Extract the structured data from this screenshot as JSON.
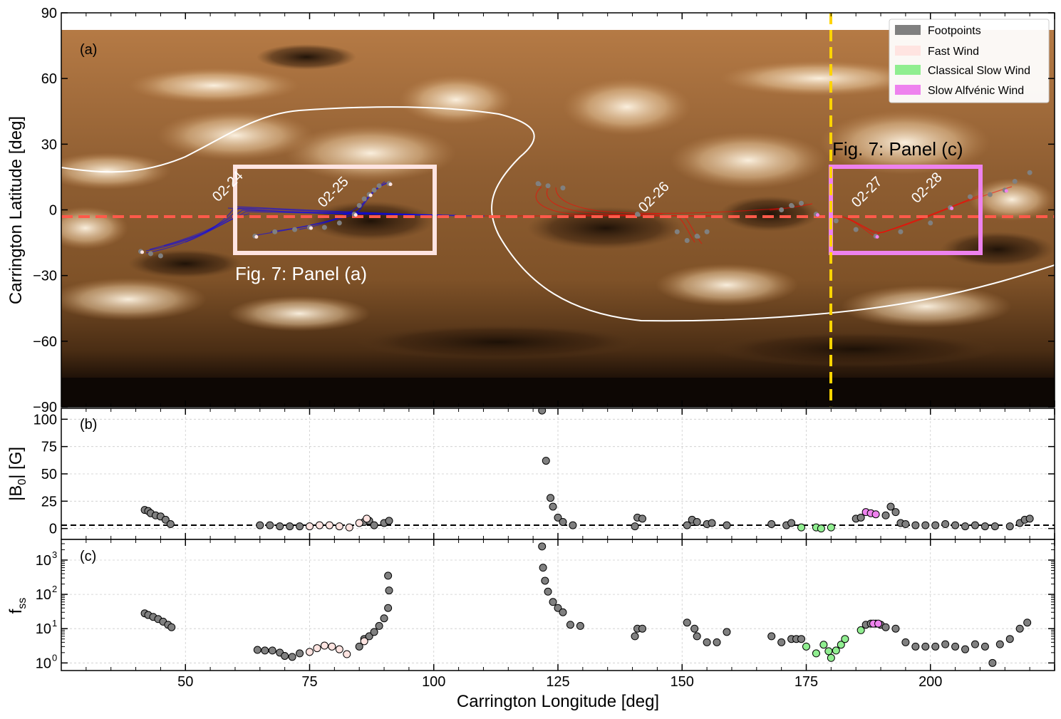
{
  "figure": {
    "xlabel": "Carrington Longitude [deg]",
    "xticks": [
      50,
      75,
      100,
      125,
      150,
      175,
      200
    ],
    "xlim": [
      25,
      225
    ]
  },
  "colors": {
    "footpoints": "#808080",
    "fast_wind": "#ffe4e1",
    "classical_slow_wind": "#90ee90",
    "slow_alfvenic_wind": "#ee82ee",
    "field_lines_early": "#0000ff",
    "field_lines_late": "#ff0000",
    "parker_track": "#ff5a4a",
    "crossing_line": "#ffd400",
    "neutral_line": "#ffffff"
  },
  "panel_a": {
    "tag": "(a)",
    "ylabel": "Carrington Latitude [deg]",
    "yticks": [
      90,
      60,
      30,
      0,
      -30,
      -60,
      -90
    ],
    "ylim": [
      -90,
      90
    ],
    "date_labels": [
      "02-24",
      "02-25",
      "02-26",
      "02-27",
      "02-28"
    ],
    "box_a_label": "Fig. 7: Panel (a)",
    "box_c_label": "Fig. 7: Panel (c)",
    "legend": [
      {
        "label": "Footpoints",
        "color": "#808080"
      },
      {
        "label": "Fast Wind",
        "color": "#ffe4e1"
      },
      {
        "label": "Classical Slow Wind",
        "color": "#90ee90"
      },
      {
        "label": "Slow Alfvénic Wind",
        "color": "#ee82ee"
      }
    ]
  },
  "panel_b": {
    "tag": "(b)",
    "ylabel": "|B",
    "ylabel_sub": "0",
    "ylabel_tail": "| [G]",
    "yticks": [
      "100",
      "75",
      "50",
      "25",
      "0"
    ]
  },
  "panel_c": {
    "tag": "(c)",
    "ylabel": "f",
    "ylabel_sub": "ss",
    "yticks": [
      {
        "base": "10",
        "exp": "3"
      },
      {
        "base": "10",
        "exp": "2"
      },
      {
        "base": "10",
        "exp": "1"
      },
      {
        "base": "10",
        "exp": "0"
      }
    ]
  },
  "chart_data": [
    {
      "type": "scatter",
      "title": "",
      "xlabel": "Carrington Longitude [deg]",
      "ylabel": "Carrington Latitude [deg]",
      "xlim": [
        25,
        225
      ],
      "ylim": [
        -90,
        90
      ],
      "background": "synoptic EUV map (copper colormap)",
      "parker_track_latitude": -3,
      "crossing_longitude": 180,
      "date_markers": [
        {
          "label": "02-24",
          "x": 56,
          "y": 8
        },
        {
          "label": "02-25",
          "x": 78,
          "y": 8
        },
        {
          "label": "02-26",
          "x": 143,
          "y": 2
        },
        {
          "label": "02-27",
          "x": 186,
          "y": 5
        },
        {
          "label": "02-28",
          "x": 198,
          "y": 5
        }
      ],
      "boxes": [
        {
          "label": "Fig. 7: Panel (a)",
          "x": [
            60,
            100
          ],
          "y": [
            -20,
            20
          ],
          "color": "#ffe4e1"
        },
        {
          "label": "Fig. 7: Panel (c)",
          "x": [
            180,
            210
          ],
          "y": [
            -20,
            20
          ],
          "color": "#ee82ee"
        }
      ],
      "neutral_line": [
        [
          25,
          19
        ],
        [
          35,
          17
        ],
        [
          45,
          22
        ],
        [
          55,
          30
        ],
        [
          65,
          40
        ],
        [
          80,
          46
        ],
        [
          100,
          47
        ],
        [
          115,
          45
        ],
        [
          123,
          40
        ],
        [
          127,
          35
        ],
        [
          128,
          30
        ],
        [
          124,
          22
        ],
        [
          117,
          12
        ],
        [
          111,
          0
        ],
        [
          112,
          -12
        ],
        [
          118,
          -24
        ],
        [
          128,
          -36
        ],
        [
          142,
          -44
        ],
        [
          160,
          -49
        ],
        [
          185,
          -47
        ],
        [
          205,
          -42
        ],
        [
          225,
          -25
        ]
      ],
      "footpoint_groups": [
        {
          "name": "02-24 to 02-25",
          "class": "fast",
          "points": [
            [
              41,
              -19
            ],
            [
              43,
              -20
            ],
            [
              45,
              -21
            ],
            [
              64,
              -12
            ],
            [
              68,
              -10
            ],
            [
              72,
              -9
            ],
            [
              75,
              -8
            ],
            [
              78,
              -8
            ],
            [
              81,
              -6
            ],
            [
              84,
              -2
            ],
            [
              85,
              2
            ],
            [
              86,
              5
            ],
            [
              87,
              7
            ],
            [
              88,
              9
            ],
            [
              89,
              11
            ],
            [
              91,
              12
            ]
          ]
        },
        {
          "name": "02-26",
          "class": "footpoints",
          "points": [
            [
              121,
              12
            ],
            [
              123,
              11
            ],
            [
              126,
              10
            ],
            [
              141,
              -2
            ],
            [
              149,
              -10
            ],
            [
              151,
              -14
            ],
            [
              153,
              -12
            ],
            [
              155,
              -10
            ],
            [
              170,
              0
            ],
            [
              172,
              2
            ],
            [
              174,
              3
            ]
          ]
        },
        {
          "name": "02-27 to 02-28",
          "class": "slow_alfvenic",
          "points": [
            [
              177,
              -2
            ],
            [
              181,
              -5
            ],
            [
              185,
              -9
            ],
            [
              189,
              -12
            ],
            [
              194,
              -10
            ],
            [
              200,
              -6
            ],
            [
              204,
              1
            ],
            [
              208,
              6
            ],
            [
              212,
              7
            ],
            [
              215,
              9
            ],
            [
              217,
              13
            ],
            [
              220,
              17
            ]
          ]
        }
      ]
    },
    {
      "type": "scatter",
      "title": "",
      "xlabel": "Carrington Longitude [deg]",
      "ylabel": "|B0| [G]",
      "xlim": [
        25,
        225
      ],
      "ylim": [
        -10,
        110
      ],
      "series": [
        {
          "name": "Footpoints",
          "color": "#808080",
          "points": [
            [
              41.8,
              17
            ],
            [
              42.5,
              16
            ],
            [
              43,
              14
            ],
            [
              44,
              12
            ],
            [
              45,
              11
            ],
            [
              46,
              8
            ],
            [
              47,
              4
            ],
            [
              65,
              3
            ],
            [
              67,
              3
            ],
            [
              69,
              2
            ],
            [
              71,
              2
            ],
            [
              73,
              2
            ],
            [
              86,
              6
            ],
            [
              87,
              7
            ],
            [
              88,
              3
            ],
            [
              90,
              5
            ],
            [
              91,
              7
            ],
            [
              121.8,
              108
            ],
            [
              122.6,
              62
            ],
            [
              123.5,
              28
            ],
            [
              124,
              20
            ],
            [
              125,
              10
            ],
            [
              126,
              6
            ],
            [
              128,
              3
            ],
            [
              140.5,
              2
            ],
            [
              141,
              10
            ],
            [
              142,
              9
            ],
            [
              151,
              3
            ],
            [
              152,
              8
            ],
            [
              153,
              6
            ],
            [
              155,
              4
            ],
            [
              156,
              5
            ],
            [
              159,
              3
            ],
            [
              168,
              4
            ],
            [
              171,
              3
            ],
            [
              172,
              5
            ],
            [
              185,
              9
            ],
            [
              186,
              10
            ],
            [
              191,
              12
            ],
            [
              192,
              20
            ],
            [
              193,
              15
            ],
            [
              194,
              5
            ],
            [
              195,
              4
            ],
            [
              197,
              3
            ],
            [
              199,
              3
            ],
            [
              201,
              3
            ],
            [
              203,
              4
            ],
            [
              205,
              3
            ],
            [
              207,
              2
            ],
            [
              209,
              3
            ],
            [
              211,
              2
            ],
            [
              213,
              2
            ],
            [
              216,
              2
            ],
            [
              218,
              5
            ],
            [
              219,
              8
            ],
            [
              220,
              9
            ]
          ]
        },
        {
          "name": "Fast Wind",
          "color": "#ffe4e1",
          "points": [
            [
              75,
              2
            ],
            [
              77,
              3
            ],
            [
              79,
              3
            ],
            [
              81,
              2
            ],
            [
              83,
              1
            ],
            [
              85,
              5
            ],
            [
              86.5,
              9
            ]
          ]
        },
        {
          "name": "Classical Slow Wind",
          "color": "#90ee90",
          "points": [
            [
              174,
              1
            ],
            [
              177,
              1
            ],
            [
              178,
              0
            ],
            [
              180,
              1
            ]
          ]
        },
        {
          "name": "Slow Alfvénic Wind",
          "color": "#ee82ee",
          "points": [
            [
              187,
              15
            ],
            [
              188,
              14
            ],
            [
              189,
              13
            ]
          ]
        }
      ]
    },
    {
      "type": "scatter",
      "title": "",
      "xlabel": "Carrington Longitude [deg]",
      "ylabel": "fss",
      "yscale": "log",
      "ylim": [
        0.6,
        4000
      ],
      "xlim": [
        25,
        225
      ],
      "series": [
        {
          "name": "Footpoints",
          "color": "#808080",
          "points": [
            [
              41.8,
              28
            ],
            [
              42.5,
              25
            ],
            [
              43.5,
              22
            ],
            [
              44.5,
              19
            ],
            [
              45.5,
              16
            ],
            [
              46.5,
              13
            ],
            [
              47.2,
              11
            ],
            [
              64.5,
              2.4
            ],
            [
              66,
              2.3
            ],
            [
              67.5,
              2.3
            ],
            [
              69,
              2.0
            ],
            [
              70,
              1.6
            ],
            [
              71.5,
              1.5
            ],
            [
              73,
              1.9
            ],
            [
              85,
              3
            ],
            [
              86,
              5
            ],
            [
              87,
              6
            ],
            [
              88,
              8
            ],
            [
              89,
              12
            ],
            [
              90,
              20
            ],
            [
              90.8,
              40
            ],
            [
              91,
              130
            ],
            [
              90.8,
              350
            ],
            [
              121.8,
              2500
            ],
            [
              122,
              600
            ],
            [
              122.4,
              250
            ],
            [
              123,
              120
            ],
            [
              124,
              60
            ],
            [
              125,
              40
            ],
            [
              126,
              30
            ],
            [
              127.5,
              13
            ],
            [
              129.5,
              12
            ],
            [
              140.5,
              6
            ],
            [
              141,
              10
            ],
            [
              142,
              10
            ],
            [
              151,
              15
            ],
            [
              152.5,
              10
            ],
            [
              153,
              6
            ],
            [
              155,
              4
            ],
            [
              157,
              4
            ],
            [
              159,
              8
            ],
            [
              168,
              6
            ],
            [
              170,
              4
            ],
            [
              172,
              5
            ],
            [
              173,
              5
            ],
            [
              174,
              5
            ],
            [
              187,
              13
            ],
            [
              188,
              14
            ],
            [
              189,
              14
            ],
            [
              190,
              13
            ],
            [
              191,
              11
            ],
            [
              193,
              10
            ],
            [
              195,
              4
            ],
            [
              197,
              3
            ],
            [
              199,
              3
            ],
            [
              201,
              3
            ],
            [
              203,
              3.5
            ],
            [
              205,
              3
            ],
            [
              207,
              2.5
            ],
            [
              209,
              3.5
            ],
            [
              211,
              3
            ],
            [
              212.5,
              1.0
            ],
            [
              214,
              3.5
            ],
            [
              216,
              5
            ],
            [
              218,
              10
            ],
            [
              219.5,
              15
            ]
          ]
        },
        {
          "name": "Fast Wind",
          "color": "#ffe4e1",
          "points": [
            [
              75,
              2.1
            ],
            [
              76.5,
              2.7
            ],
            [
              78,
              3.2
            ],
            [
              79.5,
              3.0
            ],
            [
              81,
              2.5
            ],
            [
              82.5,
              1.8
            ],
            [
              86,
              4.3
            ]
          ]
        },
        {
          "name": "Classical Slow Wind",
          "color": "#90ee90",
          "points": [
            [
              175,
              3
            ],
            [
              177,
              1.9
            ],
            [
              178.5,
              3.4
            ],
            [
              179.5,
              2.2
            ],
            [
              180,
              1.4
            ],
            [
              181,
              2.3
            ],
            [
              182,
              3.4
            ],
            [
              182.8,
              5
            ],
            [
              186,
              9
            ]
          ]
        },
        {
          "name": "Slow Alfvénic Wind",
          "color": "#ee82ee",
          "points": [
            [
              188.5,
              14
            ],
            [
              189.5,
              14
            ]
          ]
        }
      ]
    }
  ]
}
